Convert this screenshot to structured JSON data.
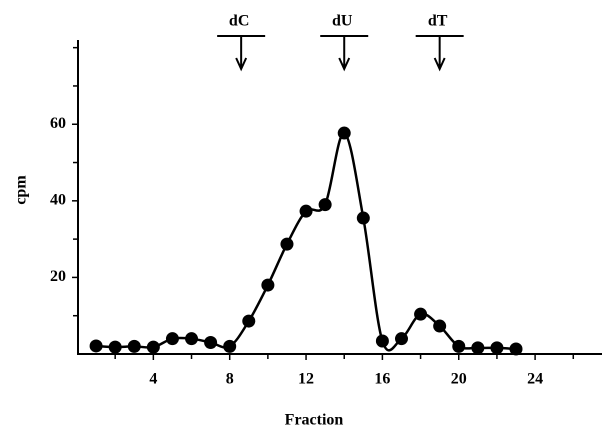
{
  "chart_data": {
    "type": "line",
    "x_label": "Fraction",
    "y_label": "cpm",
    "x": [
      1,
      2,
      3,
      4,
      5,
      6,
      7,
      8,
      9,
      10,
      11,
      12,
      13,
      14,
      15,
      16,
      17,
      18,
      19,
      20,
      21,
      22,
      23
    ],
    "series": [
      {
        "color": "#000000",
        "values": [
          2.1,
          1.8,
          2,
          1.8,
          4,
          4,
          3,
          2,
          8.6,
          18,
          28.7,
          37.3,
          39,
          57.7,
          35.5,
          3.4,
          4,
          10.4,
          7.3,
          2,
          1.6,
          1.6,
          1.3
        ]
      }
    ],
    "xlim": [
      0,
      27.4
    ],
    "ylim": [
      0,
      82
    ],
    "xticks": [
      4,
      8,
      12,
      16,
      20,
      24
    ],
    "yticks": [
      20,
      40,
      60
    ],
    "xticks_minor": [
      2,
      6,
      10,
      14,
      18,
      22,
      26
    ],
    "yticks_minor": [
      10,
      30,
      50,
      70,
      80
    ],
    "annotations": [
      {
        "label": "dC",
        "x": 8.6
      },
      {
        "label": "dU",
        "x": 14
      },
      {
        "label": "dT",
        "x": 19
      }
    ]
  }
}
